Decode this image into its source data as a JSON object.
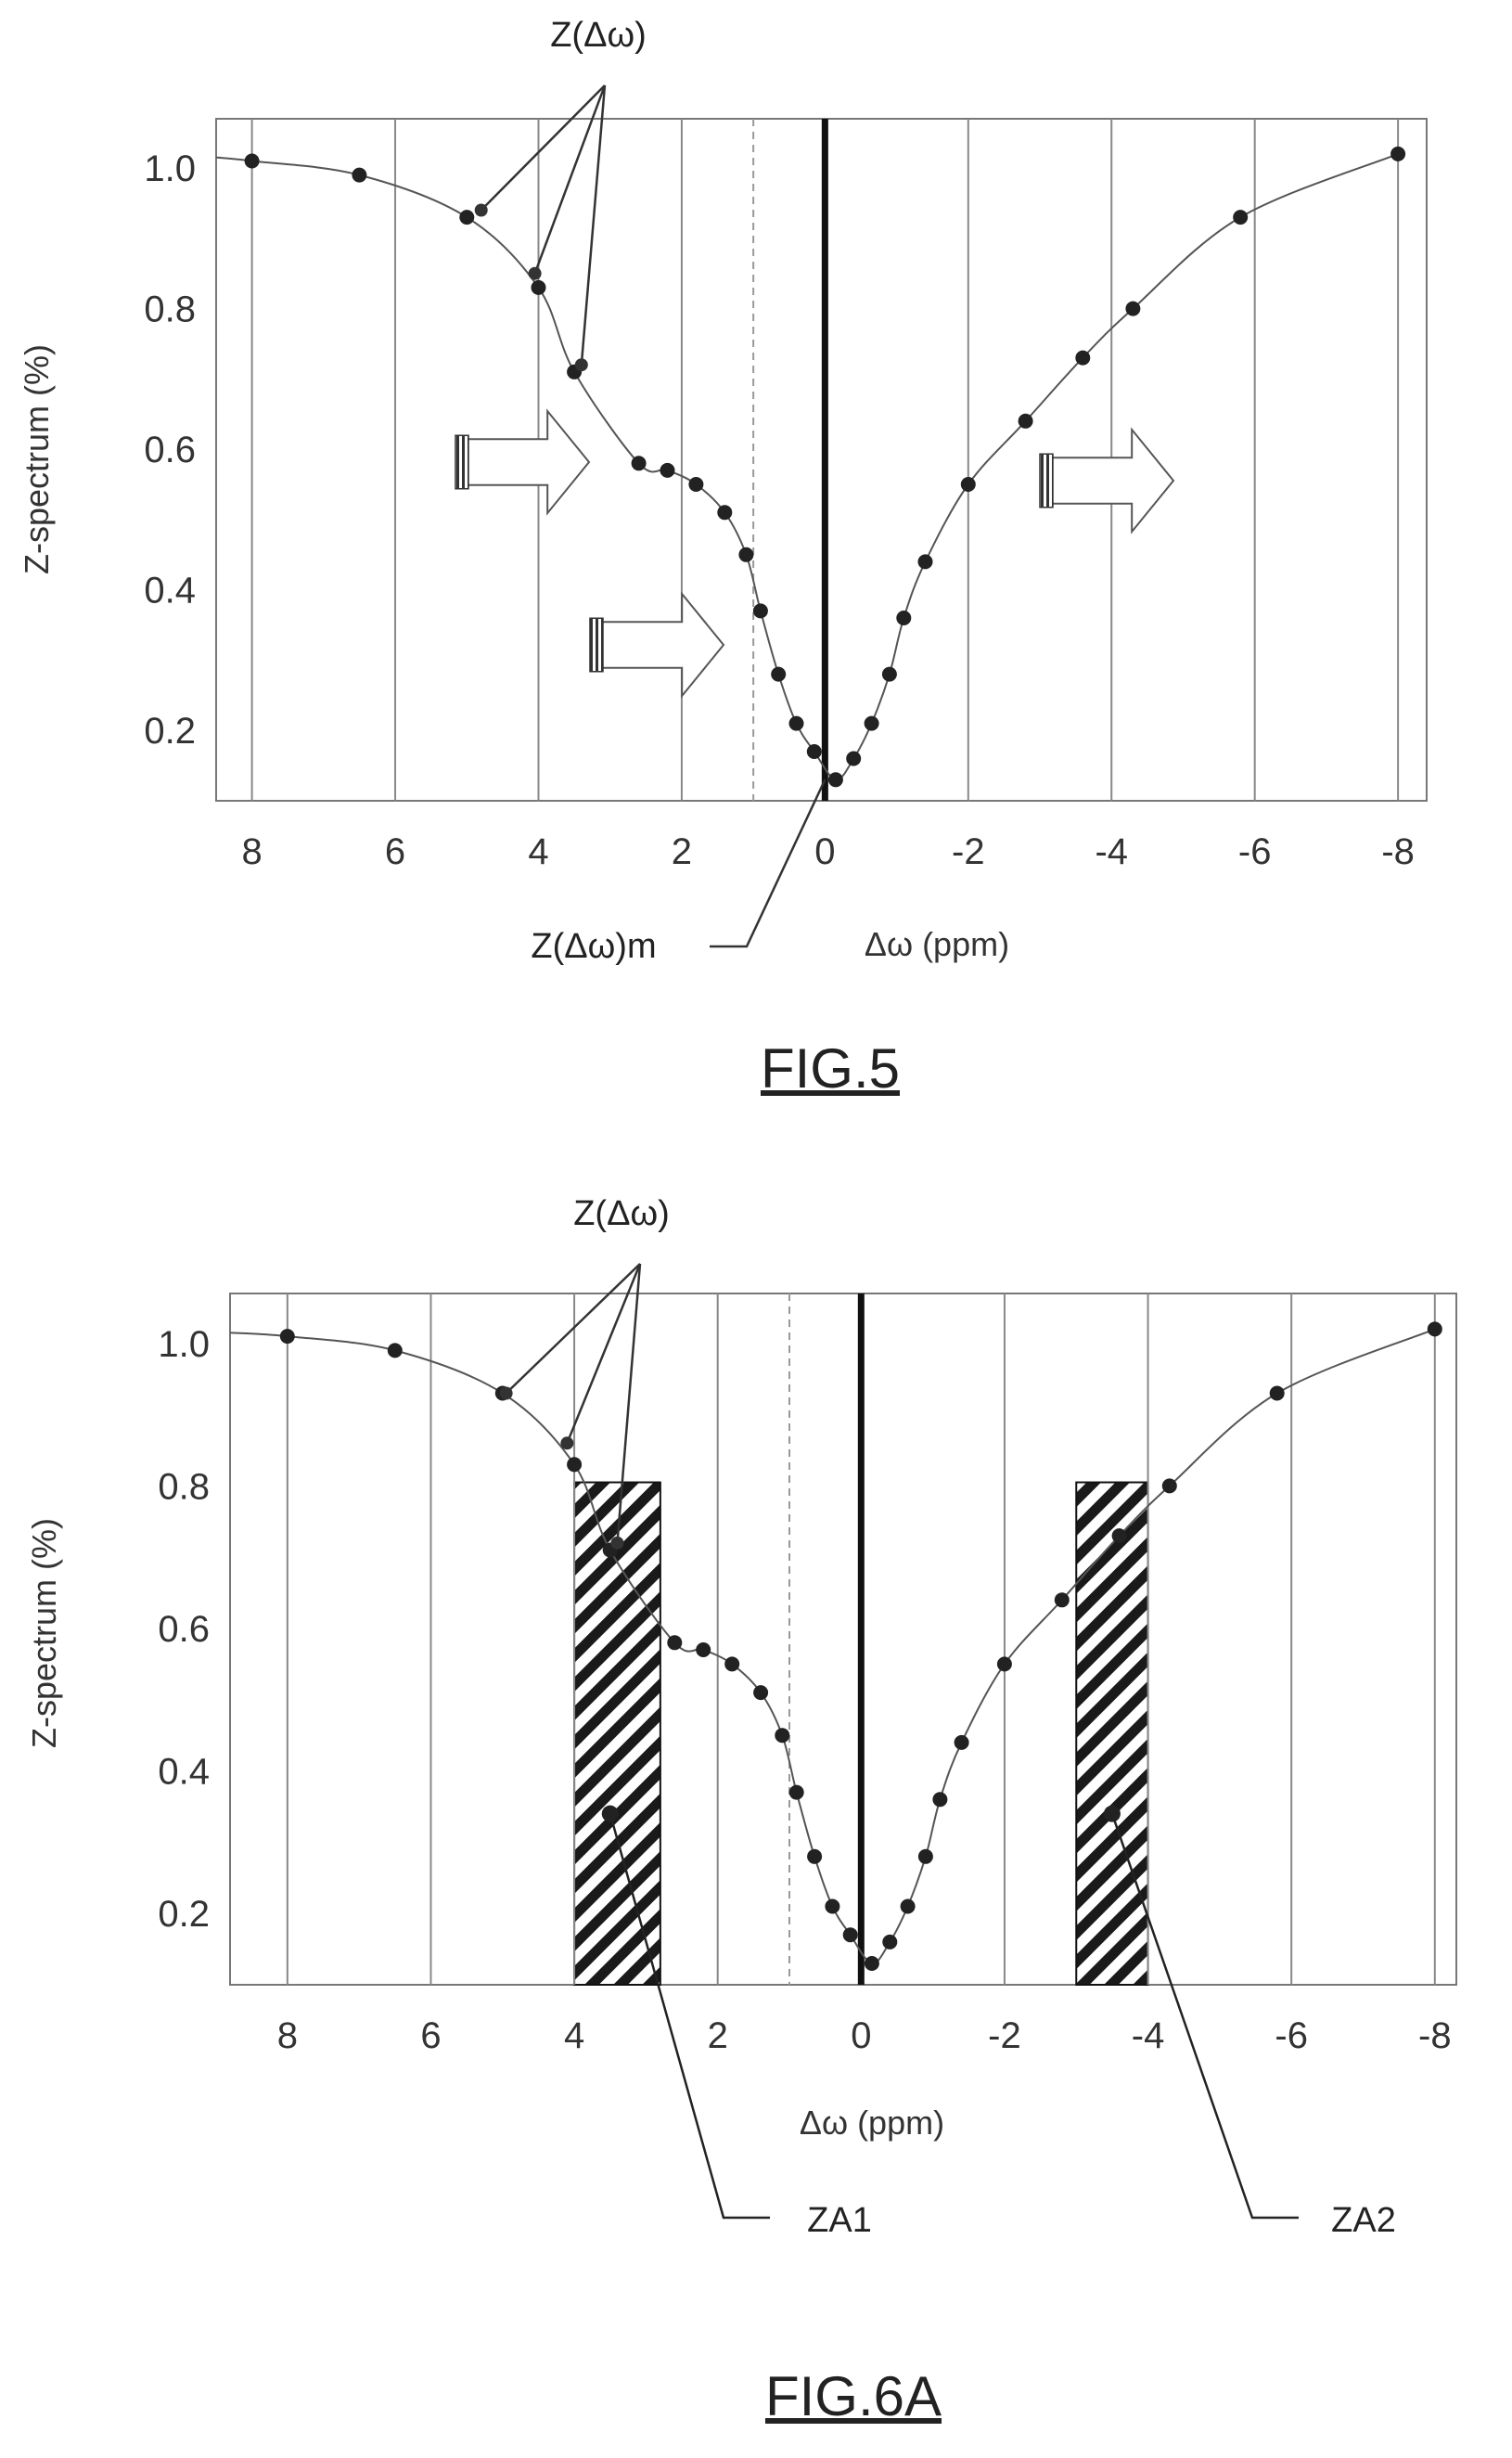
{
  "chart_data": [
    {
      "type": "scatter",
      "figure_label": "FIG.5",
      "xlabel": "Δω (ppm)",
      "ylabel": "Z-spectrum (%)",
      "x_reversed": true,
      "xlim": [
        8.5,
        -8.4
      ],
      "ylim": [
        0.1,
        1.07
      ],
      "xticks": [
        8,
        6,
        4,
        2,
        0,
        -2,
        -4,
        -6,
        -8
      ],
      "xtick_labels": [
        "8",
        "6",
        "4",
        "2",
        "0",
        "-2",
        "-4",
        "-6",
        "-8"
      ],
      "yticks": [
        1.0,
        0.8,
        0.6,
        0.4,
        0.2
      ],
      "ytick_labels": [
        "1.0",
        "0.8",
        "0.6",
        "0.4",
        "0.2"
      ],
      "grid": true,
      "series": [
        {
          "x": [
            8.0,
            6.5,
            5.0,
            4.0,
            3.5,
            2.6,
            2.2,
            1.8,
            1.4,
            1.1,
            0.9,
            0.65,
            0.4,
            0.15,
            -0.15,
            -0.4,
            -0.65,
            -0.9,
            -1.1,
            -1.4,
            -2.0,
            -2.8,
            -3.6,
            -4.3,
            -5.8,
            -8.0
          ],
          "y": [
            1.01,
            0.99,
            0.93,
            0.83,
            0.71,
            0.58,
            0.57,
            0.55,
            0.51,
            0.45,
            0.37,
            0.28,
            0.21,
            0.17,
            0.13,
            0.16,
            0.21,
            0.28,
            0.36,
            0.44,
            0.55,
            0.64,
            0.73,
            0.8,
            0.93,
            1.02
          ]
        }
      ],
      "annotations": [
        {
          "text": "Z(Δω)",
          "position": "top"
        },
        {
          "text": "Z(Δω)m",
          "position": "bottom-left of minimum"
        }
      ],
      "markers": {
        "minimum_line_x": 0,
        "dashed_line_x": 1
      }
    },
    {
      "type": "scatter",
      "figure_label": "FIG.6A",
      "xlabel": "Δω (ppm)",
      "ylabel": "Z-spectrum (%)",
      "x_reversed": true,
      "xlim": [
        8.8,
        -8.3
      ],
      "ylim": [
        0.1,
        1.07
      ],
      "xticks": [
        8,
        6,
        4,
        2,
        0,
        -2,
        -4,
        -6,
        -8
      ],
      "xtick_labels": [
        "8",
        "6",
        "4",
        "2",
        "0",
        "-2",
        "-4",
        "-6",
        "-8"
      ],
      "yticks": [
        1.0,
        0.8,
        0.6,
        0.4,
        0.2
      ],
      "ytick_labels": [
        "1.0",
        "0.8",
        "0.6",
        "0.4",
        "0.2"
      ],
      "grid": true,
      "series": [
        {
          "x": [
            8.0,
            6.5,
            5.0,
            4.0,
            3.5,
            2.6,
            2.2,
            1.8,
            1.4,
            1.1,
            0.9,
            0.65,
            0.4,
            0.15,
            -0.15,
            -0.4,
            -0.65,
            -0.9,
            -1.1,
            -1.4,
            -2.0,
            -2.8,
            -3.6,
            -4.3,
            -5.8,
            -8.0
          ],
          "y": [
            1.01,
            0.99,
            0.93,
            0.83,
            0.71,
            0.58,
            0.57,
            0.55,
            0.51,
            0.45,
            0.37,
            0.28,
            0.21,
            0.17,
            0.13,
            0.16,
            0.21,
            0.28,
            0.36,
            0.44,
            0.55,
            0.64,
            0.73,
            0.8,
            0.93,
            1.02
          ]
        }
      ],
      "hatched_regions": [
        {
          "name": "ZA1",
          "x_from": 4.0,
          "x_to": 2.8
        },
        {
          "name": "ZA2",
          "x_from": -3.0,
          "x_to": -4.0
        }
      ],
      "annotations": [
        {
          "text": "Z(Δω)",
          "position": "top"
        },
        {
          "text": "ZA1",
          "position": "bottom"
        },
        {
          "text": "ZA2",
          "position": "bottom-right"
        }
      ],
      "markers": {
        "minimum_line_x": 0,
        "dashed_line_x": 1
      }
    }
  ]
}
